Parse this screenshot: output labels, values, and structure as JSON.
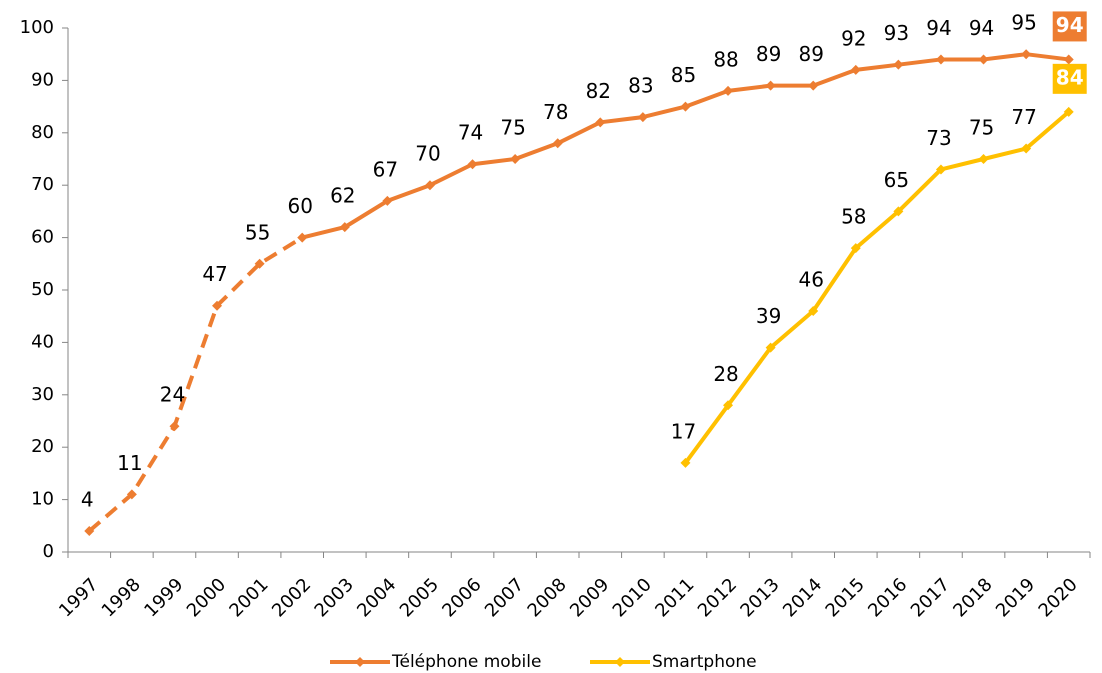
{
  "chart_data": {
    "type": "line",
    "categories": [
      "1997",
      "1998",
      "1999",
      "2000",
      "2001",
      "2002",
      "2003",
      "2004",
      "2005",
      "2006",
      "2007",
      "2008",
      "2009",
      "2010",
      "2011",
      "2012",
      "2013",
      "2014",
      "2015",
      "2016",
      "2017",
      "2018",
      "2019",
      "2020"
    ],
    "series": [
      {
        "name": "Téléphone mobile",
        "color": "#ED7D31",
        "dash_end": 5,
        "values": [
          4,
          11,
          24,
          47,
          55,
          60,
          62,
          67,
          70,
          74,
          75,
          78,
          82,
          83,
          85,
          88,
          89,
          89,
          92,
          93,
          94,
          94,
          95,
          94
        ]
      },
      {
        "name": "Smartphone",
        "color": "#FFC000",
        "values": [
          null,
          null,
          null,
          null,
          null,
          null,
          null,
          null,
          null,
          null,
          null,
          null,
          null,
          null,
          17,
          28,
          39,
          46,
          58,
          65,
          73,
          75,
          77,
          84
        ]
      }
    ],
    "ylim": [
      0,
      100
    ],
    "yticks": [
      0,
      10,
      20,
      30,
      40,
      50,
      60,
      70,
      80,
      90,
      100
    ],
    "grid": false,
    "legend": "bottom"
  }
}
